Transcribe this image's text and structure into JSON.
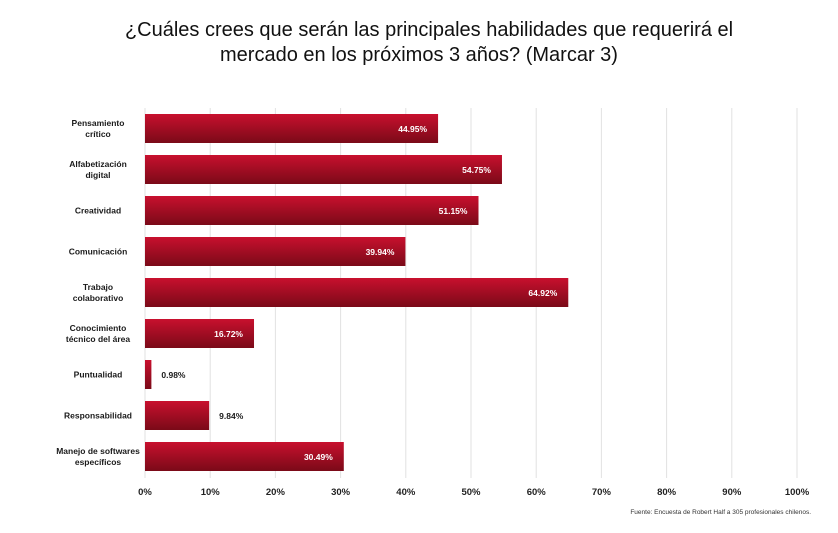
{
  "title_line1": "¿Cuáles crees que serán las principales habilidades que requerirá el",
  "title_line2": "mercado en los próximos 3 años? (Marcar 3)",
  "source": "Fuente: Encuesta de Robert Half a 305 profesionales chilenos.",
  "colors": {
    "bar_top": "#c8102e",
    "bar_bottom": "#7a0a18",
    "grid": "#e2e2e2",
    "label_inside": "#ffffff",
    "label_outside": "#1a1a1a"
  },
  "chart_data": {
    "type": "bar",
    "orientation": "horizontal",
    "title": "¿Cuáles crees que serán las principales habilidades que requerirá el mercado en los próximos 3 años? (Marcar 3)",
    "categories": [
      [
        "Pensamiento",
        "crítico"
      ],
      [
        "Alfabetización",
        "digital"
      ],
      [
        "Creatividad"
      ],
      [
        "Comunicación"
      ],
      [
        "Trabajo",
        "colaborativo"
      ],
      [
        "Conocimiento",
        "técnico del área"
      ],
      [
        "Puntualidad"
      ],
      [
        "Responsabilidad"
      ],
      [
        "Manejo de softwares",
        "específicos"
      ]
    ],
    "values": [
      44.95,
      54.75,
      51.15,
      39.94,
      64.92,
      16.72,
      0.98,
      9.84,
      30.49
    ],
    "value_labels": [
      "44.95%",
      "54.75%",
      "51.15%",
      "39.94%",
      "64.92%",
      "16.72%",
      "0.98%",
      "9.84%",
      "30.49%"
    ],
    "xlim": [
      0,
      100
    ],
    "xticks": [
      "0%",
      "10%",
      "20%",
      "30%",
      "40%",
      "50%",
      "60%",
      "70%",
      "80%",
      "90%",
      "100%"
    ],
    "grid": true,
    "legend": "none"
  }
}
